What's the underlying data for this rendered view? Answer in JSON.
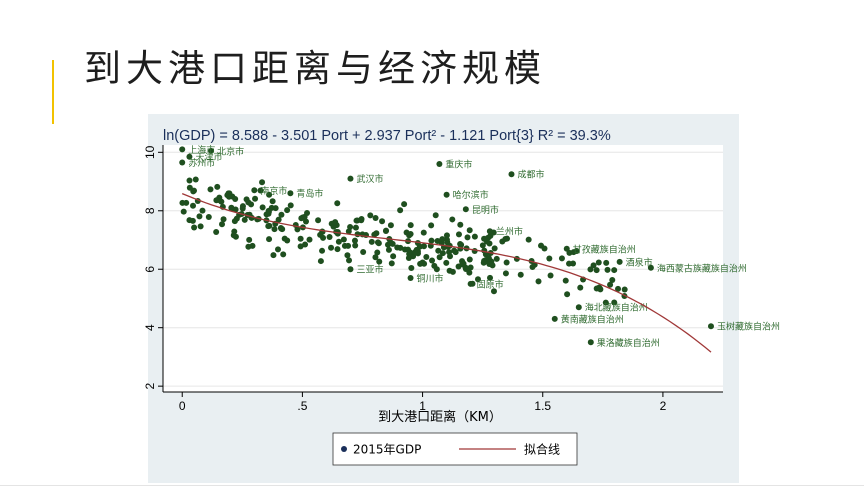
{
  "slide": {
    "title": "到大港口距离与经济规模"
  },
  "chart_data": {
    "type": "scatter",
    "title": "ln(GDP) = 8.588 - 3.501 Port + 2.937 Port² - 1.121 Port{3}  R² = 39.3%",
    "xlabel": "到大港口距离（KM）",
    "ylabel": "",
    "xlim": [
      -0.08,
      2.25
    ],
    "ylim": [
      1.8,
      10.25
    ],
    "xticks": [
      {
        "v": 0,
        "label": "0"
      },
      {
        "v": 0.5,
        "label": ".5"
      },
      {
        "v": 1,
        "label": "1"
      },
      {
        "v": 1.5,
        "label": "1.5"
      },
      {
        "v": 2,
        "label": "2"
      }
    ],
    "yticks": [
      2,
      4,
      6,
      8,
      10
    ],
    "grid": true,
    "fit": {
      "name": "拟合线",
      "coef": [
        8.588,
        -3.501,
        2.937,
        -1.121
      ],
      "x_range": [
        0,
        2.2
      ],
      "color": "#a03838"
    },
    "series_color": "#1f4f1f",
    "legend": [
      {
        "name": "2015年GDP",
        "marker": "dot",
        "color": "#1a2f5a"
      },
      {
        "name": "拟合线",
        "marker": "line",
        "color": "#a03838"
      }
    ],
    "labeled_points": [
      {
        "x": 0.0,
        "y": 10.1,
        "label": "上海市"
      },
      {
        "x": 0.12,
        "y": 10.05,
        "label": "北京市"
      },
      {
        "x": 0.03,
        "y": 9.85,
        "label": "天津市"
      },
      {
        "x": 0.0,
        "y": 9.65,
        "label": "苏州市"
      },
      {
        "x": 0.3,
        "y": 8.7,
        "label": "南京市"
      },
      {
        "x": 0.45,
        "y": 8.6,
        "label": "青岛市"
      },
      {
        "x": 0.7,
        "y": 9.1,
        "label": "武汉市"
      },
      {
        "x": 1.07,
        "y": 9.6,
        "label": "重庆市"
      },
      {
        "x": 1.37,
        "y": 9.25,
        "label": "成都市"
      },
      {
        "x": 1.1,
        "y": 8.55,
        "label": "哈尔滨市"
      },
      {
        "x": 1.18,
        "y": 8.05,
        "label": "昆明市"
      },
      {
        "x": 1.28,
        "y": 7.3,
        "label": "兰州市"
      },
      {
        "x": 1.82,
        "y": 6.25,
        "label": "酒泉市"
      },
      {
        "x": 1.95,
        "y": 6.05,
        "label": "海西蒙古族藏族自治州"
      },
      {
        "x": 1.6,
        "y": 6.7,
        "label": "甘孜藏族自治州"
      },
      {
        "x": 1.2,
        "y": 5.5,
        "label": "固原市"
      },
      {
        "x": 0.95,
        "y": 5.7,
        "label": "铜川市"
      },
      {
        "x": 0.7,
        "y": 6.0,
        "label": "三亚市"
      },
      {
        "x": 1.65,
        "y": 4.7,
        "label": "海北藏族自治州"
      },
      {
        "x": 1.55,
        "y": 4.3,
        "label": "黄南藏族自治州"
      },
      {
        "x": 1.7,
        "y": 3.5,
        "label": "果洛藏族自治州"
      },
      {
        "x": 2.2,
        "y": 4.05,
        "label": "玉树藏族自治州"
      }
    ]
  }
}
